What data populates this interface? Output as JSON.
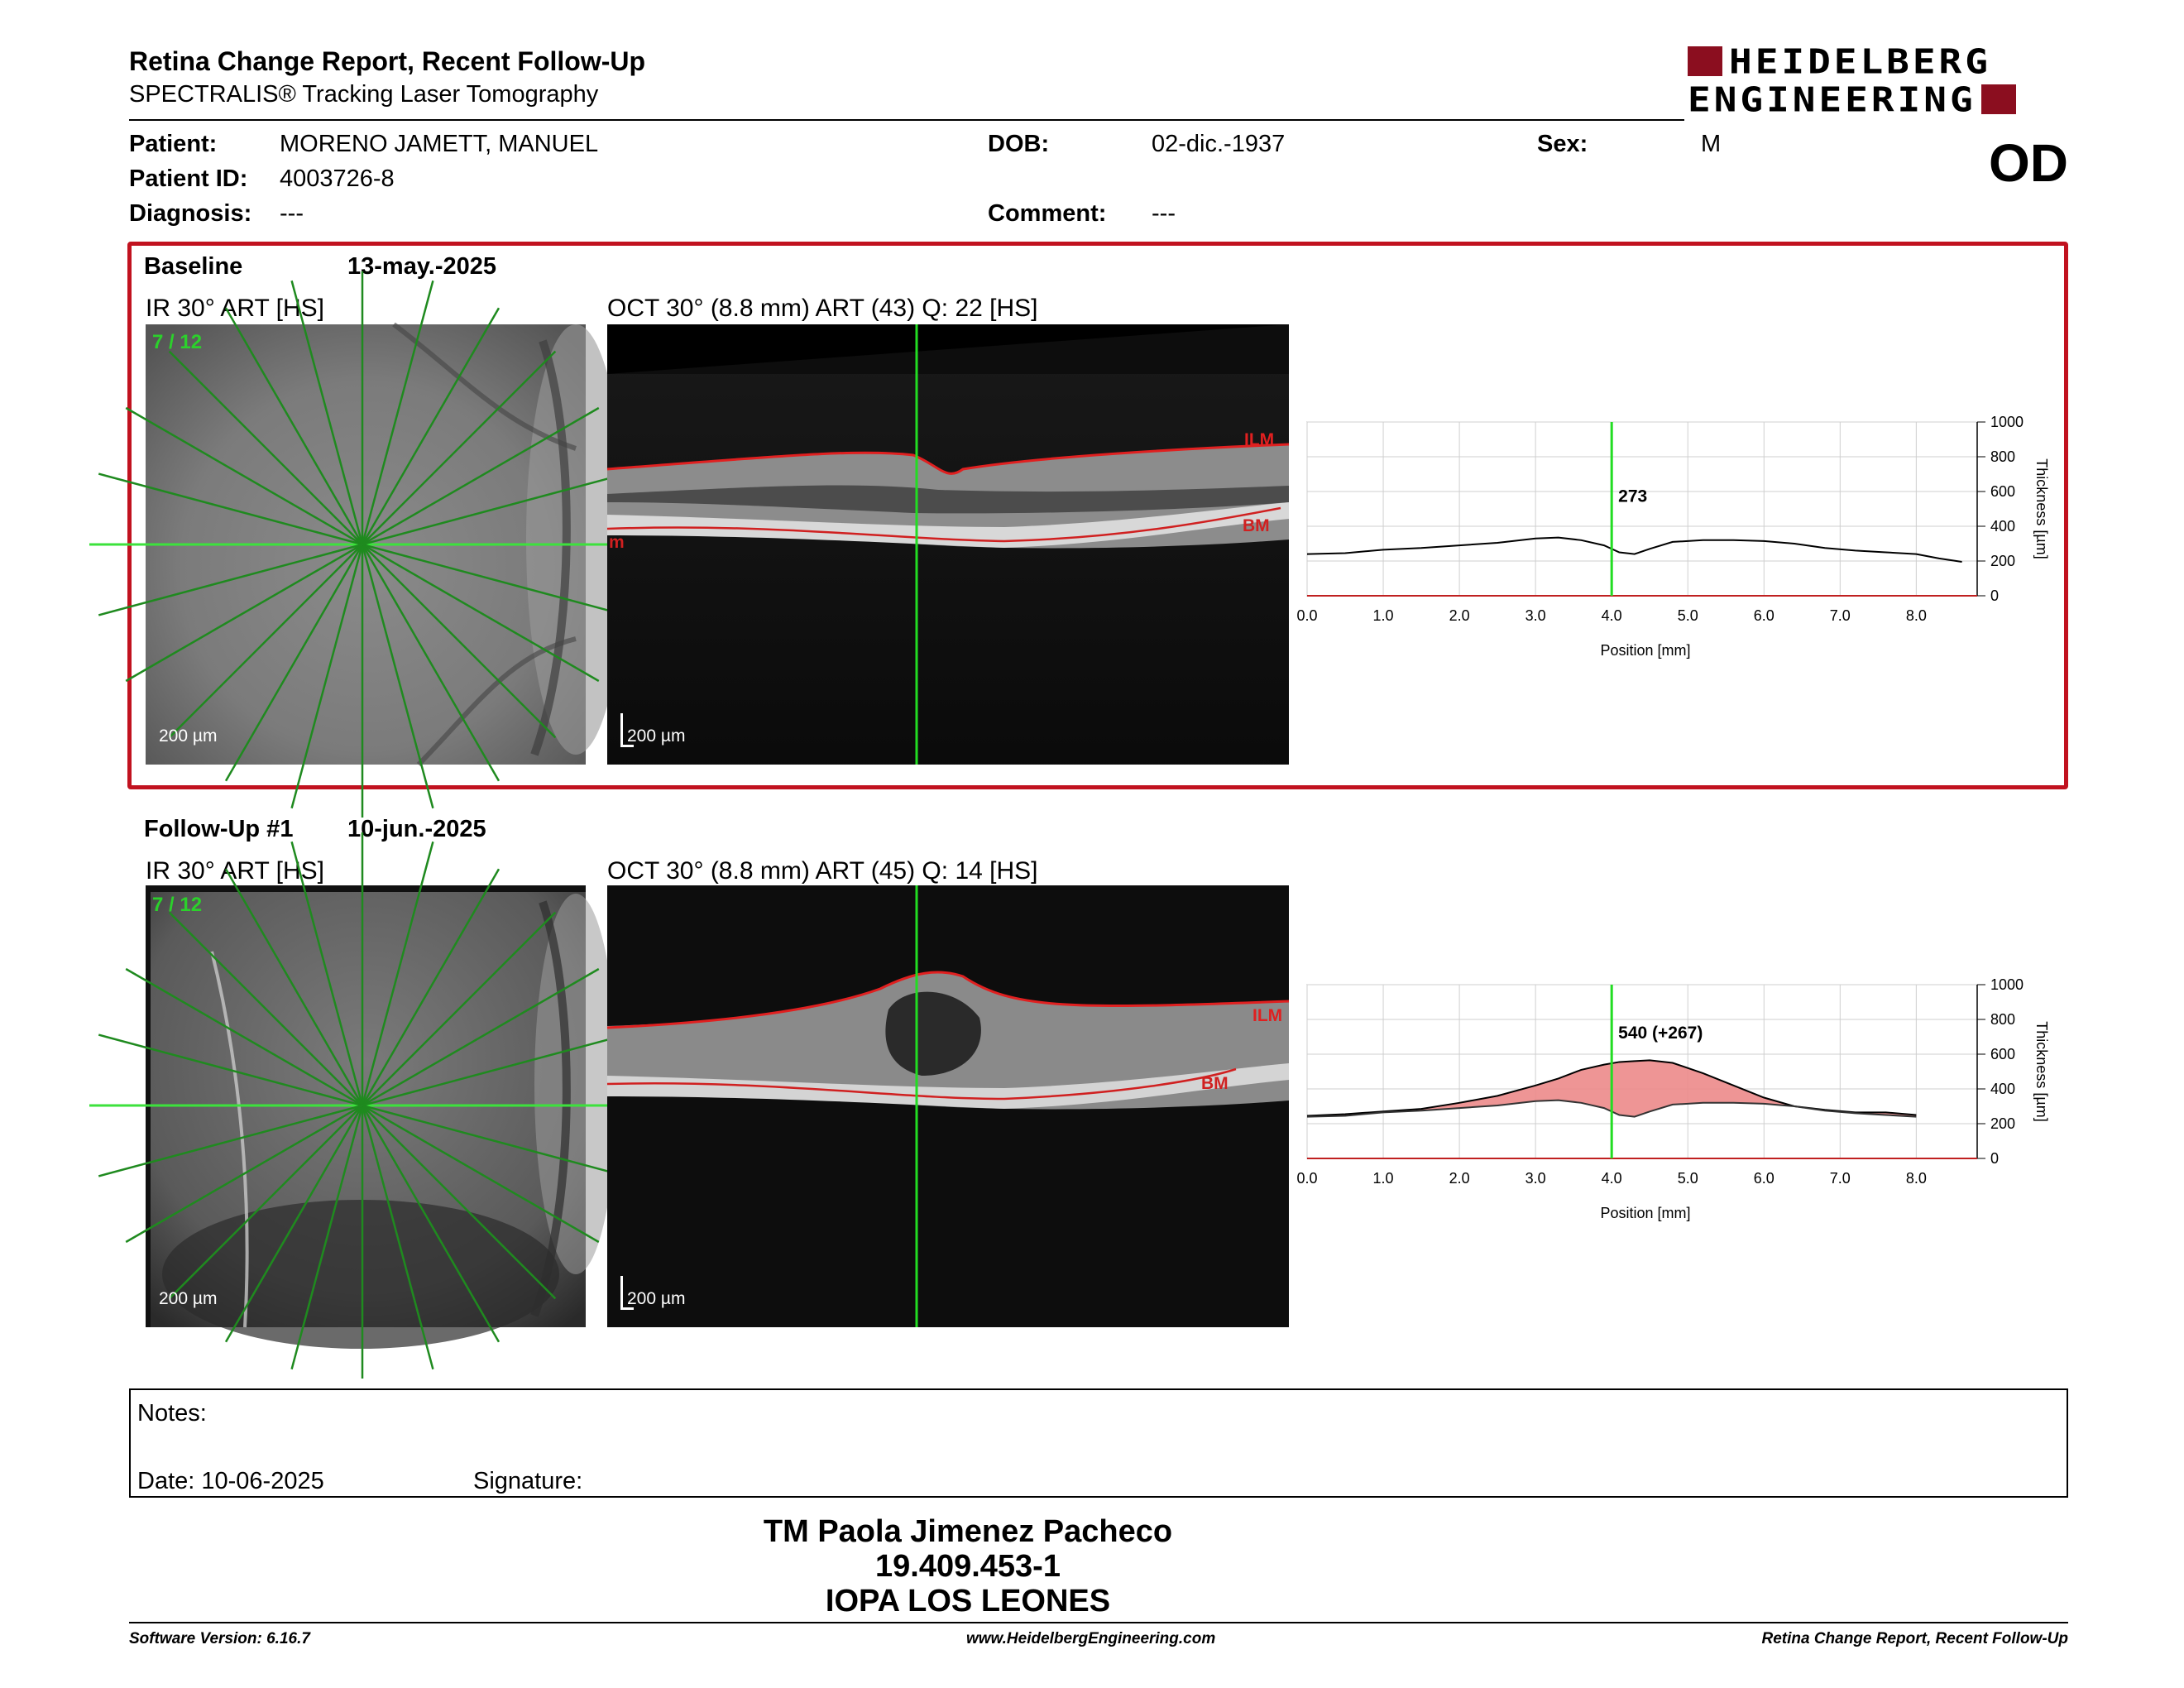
{
  "header": {
    "title": "Retina Change Report, Recent Follow-Up",
    "subtitle": "SPECTRALIS® Tracking Laser Tomography",
    "logo_line1": "HEIDELBERG",
    "logo_line2": "ENGINEERING",
    "eye": "OD"
  },
  "patient": {
    "name_label": "Patient:",
    "name": "MORENO JAMETT, MANUEL",
    "id_label": "Patient ID:",
    "id": "4003726-8",
    "diagnosis_label": "Diagnosis:",
    "diagnosis": "---",
    "dob_label": "DOB:",
    "dob": "02-dic.-1937",
    "comment_label": "Comment:",
    "comment": "---",
    "sex_label": "Sex:",
    "sex": "M"
  },
  "baseline": {
    "label": "Baseline",
    "date": "13-may.-2025",
    "ir_title": "IR 30° ART [HS]",
    "ir_counter": "7 / 12",
    "oct_title": "OCT 30° (8.8 mm) ART (43) Q: 22 [HS]",
    "scale": "200 µm",
    "ilm": "ILM",
    "bm": "BM",
    "m": "m"
  },
  "followup": {
    "label": "Follow-Up #1",
    "date": "10-jun.-2025",
    "ir_title": "IR 30° ART [HS]",
    "ir_counter": "7 / 12",
    "oct_title": "OCT 30° (8.8 mm) ART (45) Q: 14 [HS]",
    "scale": "200 µm",
    "ilm": "ILM",
    "bm": "BM"
  },
  "chart_data": [
    {
      "type": "line",
      "xlabel": "Position [mm]",
      "ylabel": "Thickness [µm]",
      "xlim": [
        0,
        8.8
      ],
      "ylim": [
        0,
        1000
      ],
      "x_ticks": [
        "0.0",
        "1.0",
        "2.0",
        "3.0",
        "4.0",
        "5.0",
        "6.0",
        "7.0",
        "8.0"
      ],
      "y_ticks": [
        "0",
        "200",
        "400",
        "600",
        "800",
        "1000"
      ],
      "marker_x": 4.0,
      "marker_label": "273",
      "series": [
        {
          "x": [
            0,
            0.5,
            1.0,
            1.5,
            2.0,
            2.5,
            3.0,
            3.3,
            3.6,
            3.9,
            4.1,
            4.3,
            4.5,
            4.8,
            5.2,
            5.6,
            6.0,
            6.4,
            6.8,
            7.2,
            7.6,
            8.0,
            8.3,
            8.6
          ],
          "y": [
            240,
            245,
            265,
            275,
            290,
            305,
            330,
            335,
            320,
            290,
            250,
            240,
            270,
            310,
            320,
            320,
            315,
            300,
            275,
            260,
            250,
            240,
            215,
            195
          ]
        }
      ]
    },
    {
      "type": "area",
      "xlabel": "Position [mm]",
      "ylabel": "Thickness [µm]",
      "xlim": [
        0,
        8.8
      ],
      "ylim": [
        0,
        1000
      ],
      "x_ticks": [
        "0.0",
        "1.0",
        "2.0",
        "3.0",
        "4.0",
        "5.0",
        "6.0",
        "7.0",
        "8.0"
      ],
      "y_ticks": [
        "0",
        "200",
        "400",
        "600",
        "800",
        "1000"
      ],
      "marker_x": 4.0,
      "marker_label": "540 (+267)",
      "series": [
        {
          "x": [
            0,
            0.5,
            1.0,
            1.5,
            2.0,
            2.5,
            3.0,
            3.3,
            3.6,
            3.9,
            4.1,
            4.3,
            4.5,
            4.8,
            5.2,
            5.6,
            6.0,
            6.4,
            6.8,
            7.2,
            7.6,
            8.0
          ],
          "y": [
            245,
            255,
            270,
            285,
            320,
            360,
            420,
            460,
            510,
            540,
            555,
            560,
            565,
            550,
            490,
            420,
            350,
            300,
            280,
            265,
            265,
            250
          ]
        },
        {
          "x": [
            0,
            0.5,
            1.0,
            1.5,
            2.0,
            2.5,
            3.0,
            3.3,
            3.6,
            3.9,
            4.1,
            4.3,
            4.5,
            4.8,
            5.2,
            5.6,
            6.0,
            6.4,
            6.8,
            7.2,
            7.6,
            8.0
          ],
          "y": [
            240,
            245,
            265,
            275,
            290,
            305,
            330,
            335,
            320,
            290,
            250,
            240,
            270,
            310,
            320,
            320,
            315,
            300,
            275,
            260,
            250,
            240
          ]
        }
      ]
    }
  ],
  "notes": {
    "label": "Notes:",
    "date": "Date: 10-06-2025",
    "signature": "Signature:"
  },
  "signer": {
    "name": "TM Paola Jimenez Pacheco",
    "rut": "19.409.453-1",
    "place": "IOPA LOS LEONES"
  },
  "footer": {
    "software": "Software Version: 6.16.7",
    "url": "www.HeidelbergEngineering.com",
    "report": "Retina Change Report, Recent Follow-Up"
  }
}
